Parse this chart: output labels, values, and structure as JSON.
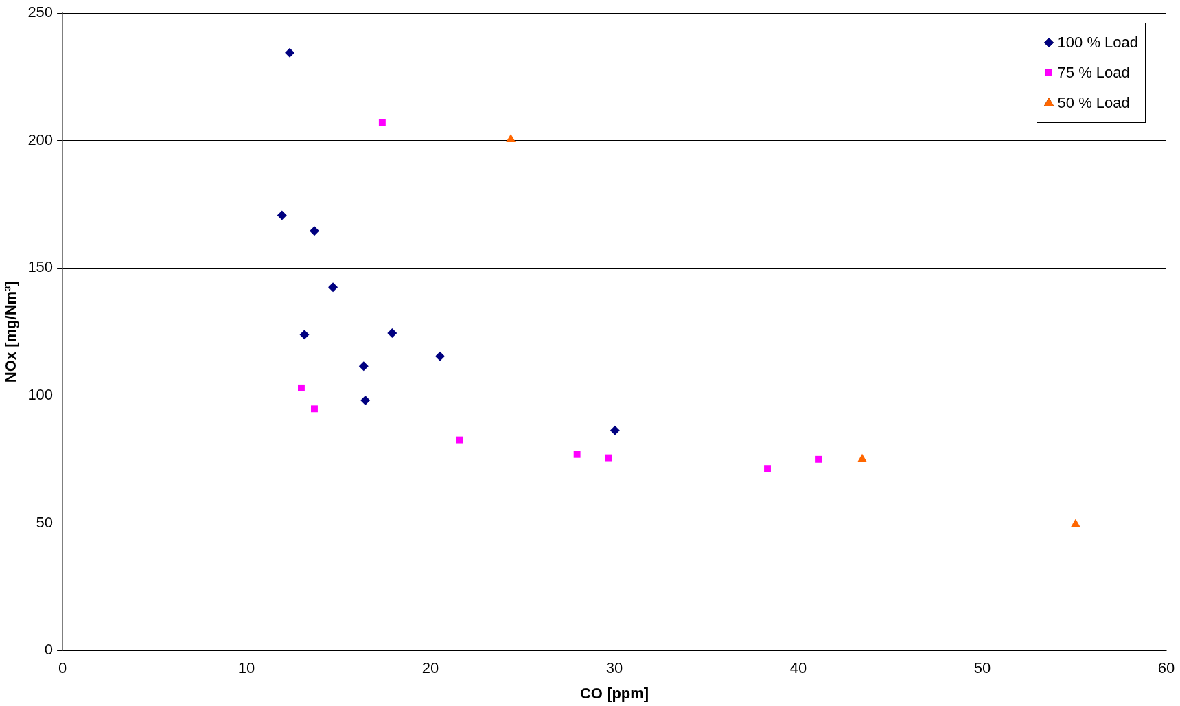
{
  "chart_data": {
    "type": "scatter",
    "xlabel": "CO [ppm]",
    "ylabel": "NOx [mg/Nm³]",
    "xlim": [
      0,
      60
    ],
    "xticks": [
      0,
      10,
      20,
      30,
      40,
      50,
      60
    ],
    "ylim": [
      0,
      250
    ],
    "yticks": [
      0,
      50,
      100,
      150,
      200,
      250
    ],
    "grid": "y",
    "legend": "top right",
    "series": [
      {
        "name": "100 % Load",
        "color": "#000080",
        "marker": "diamond",
        "x": [
          12.35,
          11.93,
          13.69,
          14.7,
          13.15,
          17.92,
          16.37,
          20.52,
          16.46,
          30.03
        ],
        "values": [
          234.5,
          170.7,
          164.6,
          142.5,
          123.9,
          124.5,
          111.5,
          115.4,
          98.1,
          86.3
        ]
      },
      {
        "name": "75 % Load",
        "color": "#ff00ff",
        "marker": "square",
        "x": [
          17.38,
          12.98,
          13.69,
          21.57,
          27.97,
          29.69,
          38.32,
          41.12
        ],
        "values": [
          207.2,
          103,
          94.8,
          82.6,
          76.9,
          75.6,
          71.4,
          75
        ]
      },
      {
        "name": "50 % Load",
        "color": "#ff6600",
        "marker": "triangle",
        "x": [
          24.37,
          43.47,
          55.07
        ],
        "values": [
          200.5,
          75,
          49.5
        ]
      }
    ]
  }
}
